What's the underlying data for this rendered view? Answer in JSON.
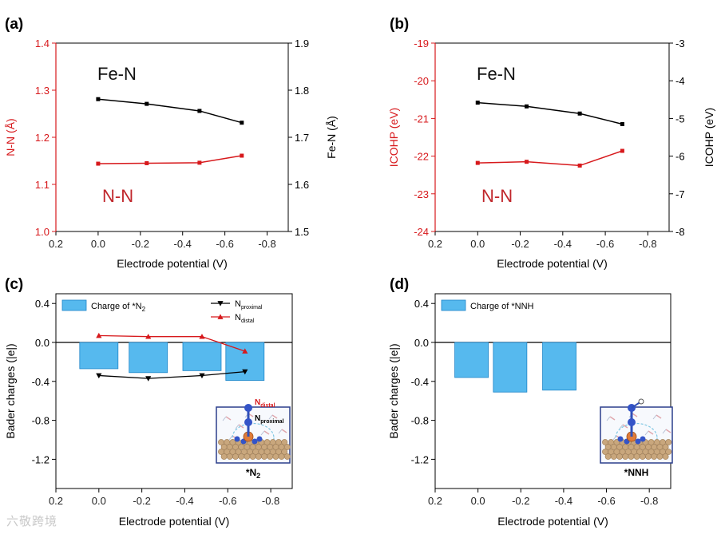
{
  "colors": {
    "red": "#d7191c",
    "black": "#000000",
    "bar": "#56b9ee",
    "bar_edge": "#1f86c9",
    "text_red": "#c0262b"
  },
  "watermark": "六敬跨境",
  "chart_data": [
    {
      "panel": "(a)",
      "type": "line",
      "xlabel": "Electrode potential (V)",
      "x_reversed": true,
      "xlim": [
        0.2,
        -0.9
      ],
      "xticks": [
        0.2,
        0.0,
        -0.2,
        -0.4,
        -0.6,
        -0.8
      ],
      "xtick_labels": [
        "0.2",
        "0.0",
        "-0.2",
        "-0.4",
        "-0.6",
        "-0.8"
      ],
      "x": [
        0.0,
        -0.23,
        -0.48,
        -0.68
      ],
      "left_axis": {
        "label": "N-N (Å)",
        "ylim": [
          1.0,
          1.4
        ],
        "ticks": [
          1.0,
          1.1,
          1.2,
          1.3,
          1.4
        ],
        "tick_labels": [
          "1.0",
          "1.1",
          "1.2",
          "1.3",
          "1.4"
        ]
      },
      "right_axis": {
        "label": "Fe-N (Å)",
        "ylim": [
          1.5,
          1.9
        ],
        "ticks": [
          1.5,
          1.6,
          1.7,
          1.8,
          1.9
        ],
        "tick_labels": [
          "1.5",
          "1.6",
          "1.7",
          "1.8",
          "1.9"
        ]
      },
      "series": [
        {
          "name": "N-N",
          "axis": "left",
          "color": "red",
          "label": "N-N",
          "values": [
            1.144,
            1.145,
            1.146,
            1.161
          ]
        },
        {
          "name": "Fe-N",
          "axis": "right",
          "color": "black",
          "label": "Fe-N",
          "values": [
            1.781,
            1.771,
            1.756,
            1.731
          ]
        }
      ]
    },
    {
      "panel": "(b)",
      "type": "line",
      "xlabel": "Electrode potential (V)",
      "x_reversed": true,
      "xlim": [
        0.2,
        -0.9
      ],
      "xticks": [
        0.2,
        0.0,
        -0.2,
        -0.4,
        -0.6,
        -0.8
      ],
      "xtick_labels": [
        "0.2",
        "0.0",
        "-0.2",
        "-0.4",
        "-0.6",
        "-0.8"
      ],
      "x": [
        0.0,
        -0.23,
        -0.48,
        -0.68
      ],
      "left_axis": {
        "label": "ICOHP (eV)",
        "ylim": [
          -24,
          -19
        ],
        "ticks": [
          -24,
          -23,
          -22,
          -21,
          -20,
          -19
        ],
        "tick_labels": [
          "-24",
          "-23",
          "-22",
          "-21",
          "-20",
          "-19"
        ]
      },
      "right_axis": {
        "label": "ICOHP (eV)",
        "ylim": [
          -8,
          -3
        ],
        "ticks": [
          -8,
          -7,
          -6,
          -5,
          -4,
          -3
        ],
        "tick_labels": [
          "-8",
          "-7",
          "-6",
          "-5",
          "-4",
          "-3"
        ]
      },
      "series": [
        {
          "name": "N-N",
          "axis": "left",
          "color": "red",
          "label": "N-N",
          "values": [
            -22.18,
            -22.15,
            -22.25,
            -21.86
          ]
        },
        {
          "name": "Fe-N",
          "axis": "right",
          "color": "black",
          "label": "Fe-N",
          "values": [
            -4.58,
            -4.68,
            -4.87,
            -5.15
          ]
        }
      ]
    },
    {
      "panel": "(c)",
      "type": "bar",
      "xlabel": "Electrode potential (V)",
      "ylabel": "Bader charges (|e|)",
      "x_reversed": true,
      "xlim": [
        0.2,
        -0.9
      ],
      "ylim": [
        -1.5,
        0.5
      ],
      "xticks": [
        0.2,
        0.0,
        -0.2,
        -0.4,
        -0.6,
        -0.8
      ],
      "xtick_labels": [
        "0.2",
        "0.0",
        "-0.2",
        "-0.4",
        "-0.6",
        "-0.8"
      ],
      "yticks": [
        -1.2,
        -0.8,
        -0.4,
        0.0,
        0.4
      ],
      "ytick_labels": [
        "-1.2",
        "-0.8",
        "-0.4",
        "0.0",
        "0.4"
      ],
      "bars": {
        "name": "Charge of *N",
        "sub": "2",
        "x": [
          0.0,
          -0.23,
          -0.48,
          -0.68
        ],
        "values": [
          -0.27,
          -0.31,
          -0.29,
          -0.39
        ]
      },
      "lines": [
        {
          "name": "N",
          "sub": "proximal",
          "color": "black",
          "marker": "triangle-down",
          "x": [
            0.0,
            -0.23,
            -0.48,
            -0.68
          ],
          "values": [
            -0.34,
            -0.37,
            -0.34,
            -0.3
          ]
        },
        {
          "name": "N",
          "sub": "distal",
          "color": "red",
          "marker": "triangle-up",
          "x": [
            0.0,
            -0.23,
            -0.48,
            -0.68
          ],
          "values": [
            0.07,
            0.06,
            0.06,
            -0.09
          ]
        }
      ],
      "inset": {
        "caption": "*N",
        "caption_sub": "2",
        "label_distal": "N",
        "label_distal_sub": "distal",
        "label_proximal": "N",
        "label_proximal_sub": "proximal"
      }
    },
    {
      "panel": "(d)",
      "type": "bar",
      "xlabel": "Electrode potential (V)",
      "ylabel": "Bader charges (|e|)",
      "x_reversed": true,
      "xlim": [
        0.2,
        -0.9
      ],
      "ylim": [
        -1.5,
        0.5
      ],
      "xticks": [
        0.2,
        0.0,
        -0.2,
        -0.4,
        -0.6,
        -0.8
      ],
      "xtick_labels": [
        "0.2",
        "0.0",
        "-0.2",
        "-0.4",
        "-0.6",
        "-0.8"
      ],
      "yticks": [
        -1.2,
        -0.8,
        -0.4,
        0.0,
        0.4
      ],
      "ytick_labels": [
        "-1.2",
        "-0.8",
        "-0.4",
        "0.0",
        "0.4"
      ],
      "bars": {
        "name": "Charge of *NNH",
        "sub": "",
        "x": [
          0.03,
          -0.15,
          -0.38
        ],
        "values": [
          -0.36,
          -0.51,
          -0.49
        ]
      },
      "lines": [],
      "inset": {
        "caption": "*NNH"
      }
    }
  ]
}
